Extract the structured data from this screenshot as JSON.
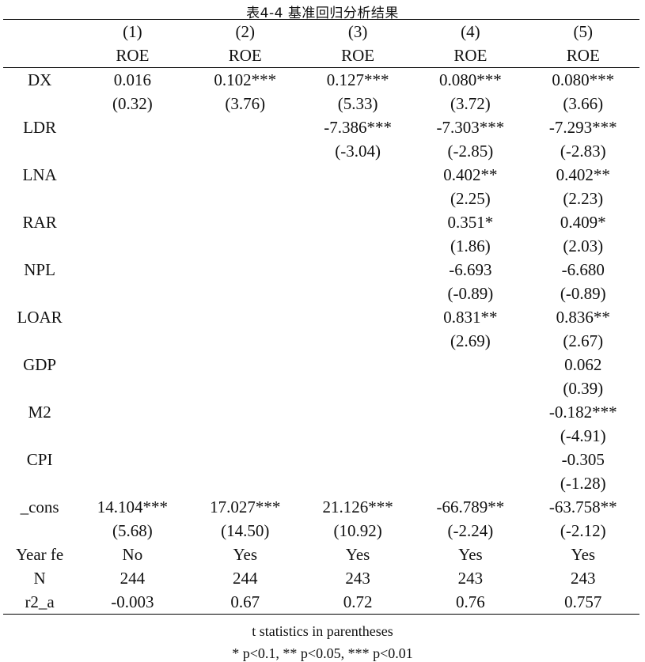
{
  "caption": "表4-4  基准回归分析结果",
  "columns": {
    "numbers": [
      "(1)",
      "(2)",
      "(3)",
      "(4)",
      "(5)"
    ],
    "depvars": [
      "ROE",
      "ROE",
      "ROE",
      "ROE",
      "ROE"
    ]
  },
  "rows": [
    {
      "label": "DX",
      "coef": [
        "0.016",
        "0.102***",
        "0.127***",
        "0.080***",
        "0.080***"
      ],
      "t": [
        "(0.32)",
        "(3.76)",
        "(5.33)",
        "(3.72)",
        "(3.66)"
      ]
    },
    {
      "label": "LDR",
      "coef": [
        "",
        "",
        "-7.386***",
        "-7.303***",
        "-7.293***"
      ],
      "t": [
        "",
        "",
        "(-3.04)",
        "(-2.85)",
        "(-2.83)"
      ]
    },
    {
      "label": "LNA",
      "coef": [
        "",
        "",
        "",
        "0.402**",
        "0.402**"
      ],
      "t": [
        "",
        "",
        "",
        "(2.25)",
        "(2.23)"
      ]
    },
    {
      "label": "RAR",
      "coef": [
        "",
        "",
        "",
        "0.351*",
        "0.409*"
      ],
      "t": [
        "",
        "",
        "",
        "(1.86)",
        "(2.03)"
      ]
    },
    {
      "label": "NPL",
      "coef": [
        "",
        "",
        "",
        "-6.693",
        "-6.680"
      ],
      "t": [
        "",
        "",
        "",
        "(-0.89)",
        "(-0.89)"
      ]
    },
    {
      "label": "LOAR",
      "coef": [
        "",
        "",
        "",
        "0.831**",
        "0.836**"
      ],
      "t": [
        "",
        "",
        "",
        "(2.69)",
        "(2.67)"
      ]
    },
    {
      "label": "GDP",
      "coef": [
        "",
        "",
        "",
        "",
        "0.062"
      ],
      "t": [
        "",
        "",
        "",
        "",
        "(0.39)"
      ]
    },
    {
      "label": "M2",
      "coef": [
        "",
        "",
        "",
        "",
        "-0.182***"
      ],
      "t": [
        "",
        "",
        "",
        "",
        "(-4.91)"
      ]
    },
    {
      "label": "CPI",
      "coef": [
        "",
        "",
        "",
        "",
        "-0.305"
      ],
      "t": [
        "",
        "",
        "",
        "",
        "(-1.28)"
      ]
    },
    {
      "label": "_cons",
      "coef": [
        "14.104***",
        "17.027***",
        "21.126***",
        "-66.789**",
        "-63.758**"
      ],
      "t": [
        "(5.68)",
        "(14.50)",
        "(10.92)",
        "(-2.24)",
        "(-2.12)"
      ]
    }
  ],
  "stats": [
    {
      "label": "Year fe",
      "values": [
        "No",
        "Yes",
        "Yes",
        "Yes",
        "Yes"
      ]
    },
    {
      "label": "N",
      "values": [
        "244",
        "244",
        "243",
        "243",
        "243"
      ]
    },
    {
      "label": "r2_a",
      "values": [
        "-0.003",
        "0.67",
        "0.72",
        "0.76",
        "0.757"
      ]
    }
  ],
  "notes": [
    "t statistics in parentheses",
    "* p<0.1, ** p<0.05, *** p<0.01"
  ]
}
